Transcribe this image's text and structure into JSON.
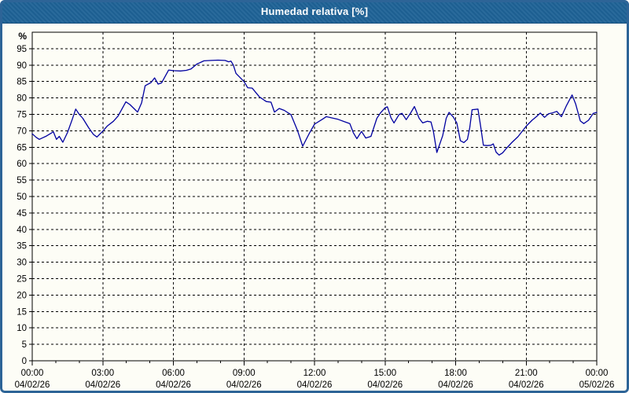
{
  "window": {
    "title": "Humedad relativa [%]"
  },
  "colors": {
    "titlebar_bg": "#1e6296",
    "titlebar_text": "#ffffff",
    "window_border": "#2d6497",
    "content_bg": "#fdfdf6",
    "axis": "#000000",
    "grid": "#000000",
    "label": "#000000",
    "line": "#0000a0"
  },
  "chart_data": {
    "type": "line",
    "title": "Humedad relativa [%]",
    "unit": "%",
    "xlabel": "",
    "ylabel": "%",
    "ylim": [
      0,
      100
    ],
    "ytick_step": 5,
    "grid": "dashed",
    "legend_position": "none",
    "x_hours_range": [
      0,
      24
    ],
    "yticks": [
      "0",
      "5",
      "10",
      "15",
      "20",
      "25",
      "30",
      "35",
      "40",
      "45",
      "50",
      "55",
      "60",
      "65",
      "70",
      "75",
      "80",
      "85",
      "90",
      "95"
    ],
    "xticks": [
      {
        "time": "00:00",
        "date": "04/02/26"
      },
      {
        "time": "03:00",
        "date": "04/02/26"
      },
      {
        "time": "06:00",
        "date": "04/02/26"
      },
      {
        "time": "09:00",
        "date": "04/02/26"
      },
      {
        "time": "12:00",
        "date": "04/02/26"
      },
      {
        "time": "15:00",
        "date": "04/02/26"
      },
      {
        "time": "18:00",
        "date": "04/02/26"
      },
      {
        "time": "21:00",
        "date": "04/02/26"
      },
      {
        "time": "00:00",
        "date": "05/02/26"
      }
    ],
    "series": [
      {
        "name": "Humedad relativa",
        "points": [
          [
            0,
            69.1
          ],
          [
            0.17,
            68
          ],
          [
            0.3,
            67.4
          ],
          [
            0.45,
            67.9
          ],
          [
            0.6,
            68.4
          ],
          [
            0.9,
            69.7
          ],
          [
            1.03,
            67.4
          ],
          [
            1.15,
            68.3
          ],
          [
            1.3,
            66.5
          ],
          [
            1.5,
            69.5
          ],
          [
            1.7,
            73.5
          ],
          [
            1.85,
            76.6
          ],
          [
            2,
            75
          ],
          [
            2.15,
            73.8
          ],
          [
            2.4,
            70.9
          ],
          [
            2.6,
            68.9
          ],
          [
            2.75,
            68.1
          ],
          [
            3,
            69.9
          ],
          [
            3.2,
            71.5
          ],
          [
            3.45,
            72.9
          ],
          [
            3.65,
            74.5
          ],
          [
            3.98,
            78.8
          ],
          [
            4.15,
            78
          ],
          [
            4.48,
            75.7
          ],
          [
            4.65,
            78.5
          ],
          [
            4.8,
            83.7
          ],
          [
            5.05,
            84.7
          ],
          [
            5.2,
            86.1
          ],
          [
            5.35,
            84.2
          ],
          [
            5.5,
            84.6
          ],
          [
            5.8,
            88.5
          ],
          [
            6,
            88.3
          ],
          [
            6.3,
            88.2
          ],
          [
            6.55,
            88.4
          ],
          [
            6.75,
            88.8
          ],
          [
            7,
            90.3
          ],
          [
            7.3,
            91.3
          ],
          [
            7.6,
            91.4
          ],
          [
            7.9,
            91.5
          ],
          [
            8.2,
            91.4
          ],
          [
            8.35,
            91
          ],
          [
            8.45,
            91.2
          ],
          [
            8.55,
            90
          ],
          [
            8.66,
            87.5
          ],
          [
            9,
            85
          ],
          [
            9.16,
            83.1
          ],
          [
            9.35,
            83
          ],
          [
            9.66,
            80.3
          ],
          [
            9.95,
            78.9
          ],
          [
            10.15,
            78.7
          ],
          [
            10.3,
            75.7
          ],
          [
            10.5,
            76.8
          ],
          [
            10.72,
            76.2
          ],
          [
            11,
            74.9
          ],
          [
            11.28,
            70
          ],
          [
            11.5,
            65.3
          ],
          [
            11.78,
            69.2
          ],
          [
            12,
            72
          ],
          [
            12.33,
            73.5
          ],
          [
            12.5,
            74.3
          ],
          [
            12.7,
            74
          ],
          [
            13,
            73.5
          ],
          [
            13.3,
            72.7
          ],
          [
            13.5,
            72.2
          ],
          [
            13.65,
            69.4
          ],
          [
            13.8,
            67.6
          ],
          [
            14,
            69.8
          ],
          [
            14.18,
            67.8
          ],
          [
            14.4,
            68.3
          ],
          [
            14.65,
            73.8
          ],
          [
            14.8,
            75.4
          ],
          [
            15,
            77
          ],
          [
            15.1,
            77.3
          ],
          [
            15.25,
            74
          ],
          [
            15.38,
            72.4
          ],
          [
            15.6,
            75
          ],
          [
            15.72,
            75.3
          ],
          [
            15.9,
            73.4
          ],
          [
            16.1,
            75.6
          ],
          [
            16.25,
            77.4
          ],
          [
            16.45,
            73.8
          ],
          [
            16.6,
            72.4
          ],
          [
            16.8,
            72.9
          ],
          [
            16.95,
            72.7
          ],
          [
            17.05,
            70
          ],
          [
            17.2,
            63.4
          ],
          [
            17.45,
            68.5
          ],
          [
            17.6,
            73.8
          ],
          [
            17.72,
            75.6
          ],
          [
            17.9,
            74.2
          ],
          [
            18.05,
            72.4
          ],
          [
            18.2,
            67
          ],
          [
            18.35,
            66.4
          ],
          [
            18.5,
            67.4
          ],
          [
            18.6,
            71
          ],
          [
            18.7,
            76.4
          ],
          [
            18.95,
            76.6
          ],
          [
            19.05,
            72
          ],
          [
            19.18,
            65.6
          ],
          [
            19.35,
            65.5
          ],
          [
            19.5,
            65.6
          ],
          [
            19.6,
            66
          ],
          [
            19.72,
            63.5
          ],
          [
            19.85,
            62.6
          ],
          [
            20,
            63.3
          ],
          [
            20.15,
            64.6
          ],
          [
            20.4,
            66.5
          ],
          [
            20.65,
            68.2
          ],
          [
            21,
            71.4
          ],
          [
            21.25,
            73.2
          ],
          [
            21.45,
            74.4
          ],
          [
            21.6,
            75.4
          ],
          [
            21.78,
            74.1
          ],
          [
            21.95,
            75.2
          ],
          [
            22.1,
            75.4
          ],
          [
            22.3,
            75.9
          ],
          [
            22.5,
            74.3
          ],
          [
            22.7,
            77.5
          ],
          [
            22.95,
            80.9
          ],
          [
            23.1,
            78.2
          ],
          [
            23.3,
            73
          ],
          [
            23.45,
            72.2
          ],
          [
            23.65,
            73.2
          ],
          [
            23.85,
            75.3
          ],
          [
            24,
            75.6
          ]
        ]
      }
    ]
  }
}
